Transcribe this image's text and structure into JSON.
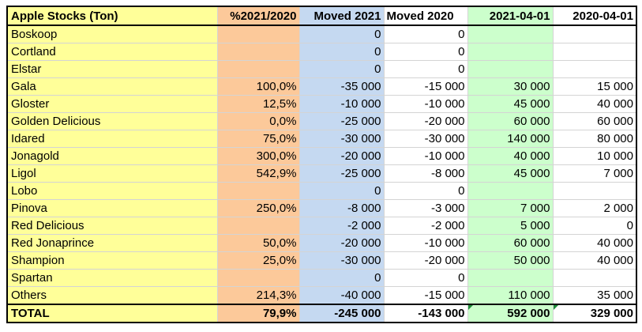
{
  "table": {
    "headers": [
      "Apple Stocks (Ton)",
      "%2021/2020",
      "Moved 2021",
      "Moved 2020",
      "2021-04-01",
      "2020-04-01"
    ],
    "rows": [
      [
        "Boskoop",
        "",
        "0",
        "0",
        "",
        ""
      ],
      [
        "Cortland",
        "",
        "0",
        "0",
        "",
        ""
      ],
      [
        "Elstar",
        "",
        "0",
        "0",
        "",
        ""
      ],
      [
        "Gala",
        "100,0%",
        "-35 000",
        "-15 000",
        "30 000",
        "15 000"
      ],
      [
        "Gloster",
        "12,5%",
        "-10 000",
        "-10 000",
        "45 000",
        "40 000"
      ],
      [
        "Golden Delicious",
        "0,0%",
        "-25 000",
        "-20 000",
        "60 000",
        "60 000"
      ],
      [
        "Idared",
        "75,0%",
        "-30 000",
        "-30 000",
        "140 000",
        "80 000"
      ],
      [
        "Jonagold",
        "300,0%",
        "-20 000",
        "-10 000",
        "40 000",
        "10 000"
      ],
      [
        "Ligol",
        "542,9%",
        "-25 000",
        "-8 000",
        "45 000",
        "7 000"
      ],
      [
        "Lobo",
        "",
        "0",
        "0",
        "",
        ""
      ],
      [
        "Pinova",
        "250,0%",
        "-8 000",
        "-3 000",
        "7 000",
        "2 000"
      ],
      [
        "Red Delicious",
        "",
        "-2 000",
        "-2 000",
        "5 000",
        "0"
      ],
      [
        "Red Jonaprince",
        "50,0%",
        "-20 000",
        "-10 000",
        "60 000",
        "40 000"
      ],
      [
        "Shampion",
        "25,0%",
        "-30 000",
        "-20 000",
        "50 000",
        "40 000"
      ],
      [
        "Spartan",
        "",
        "0",
        "0",
        "",
        ""
      ],
      [
        "Others",
        "214,3%",
        "-40 000",
        "-15 000",
        "110 000",
        "35 000"
      ]
    ],
    "total": [
      "TOTAL",
      "79,9%",
      "-245 000",
      "-143 000",
      "592 000",
      "329 000"
    ]
  },
  "colors": {
    "name_col": "#ffff99",
    "pct_col": "#fcc99a",
    "moved2021_col": "#c5d9f1",
    "date2021_col": "#ccffcc",
    "error_marker": "#1e8c3a"
  }
}
